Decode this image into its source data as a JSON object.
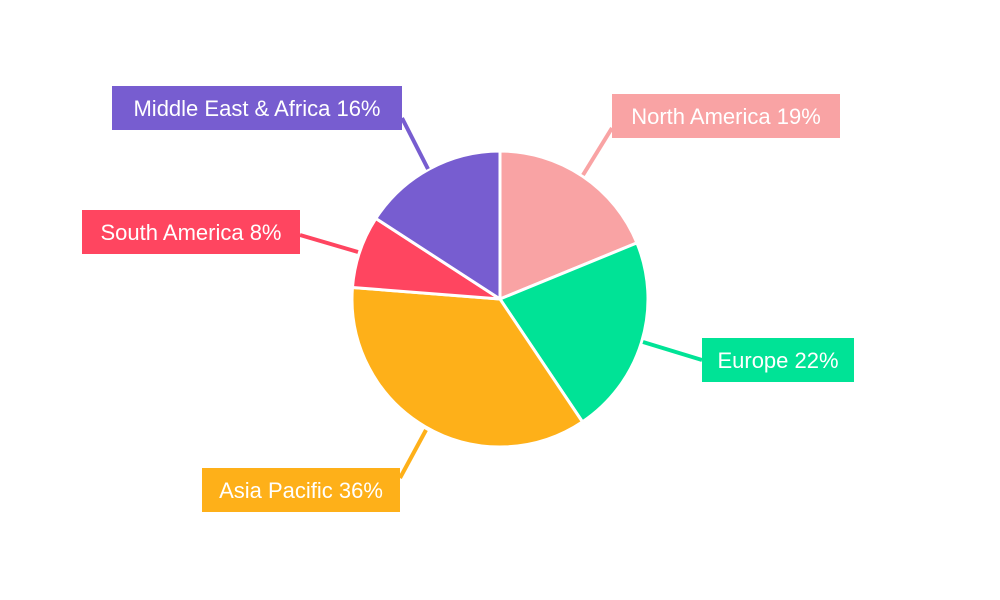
{
  "chart_data": {
    "type": "pie",
    "title": "",
    "start_angle": "top, clockwise",
    "slices": [
      {
        "name": "North America",
        "value": 19,
        "color": "#f9a3a4"
      },
      {
        "name": "Europe",
        "value": 22,
        "color": "#00e396"
      },
      {
        "name": "Asia Pacific",
        "value": 36,
        "color": "#feb019"
      },
      {
        "name": "South America",
        "value": 8,
        "color": "#ff4560"
      },
      {
        "name": "Middle East & Africa",
        "value": 16,
        "color": "#775dd0"
      }
    ],
    "legend": "none",
    "data_labels": "outside boxes with leader lines"
  }
}
